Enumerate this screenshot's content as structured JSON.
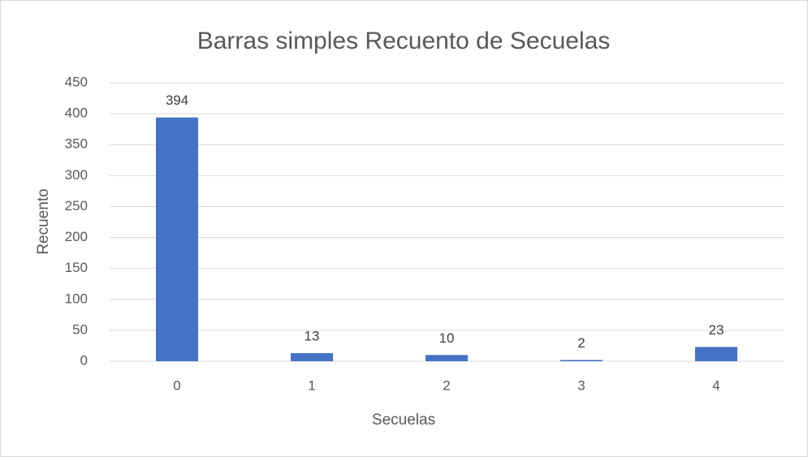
{
  "chart_data": {
    "type": "bar",
    "title": "Barras simples Recuento de Secuelas",
    "x_label": "Secuelas",
    "y_label": "Recuento",
    "categories": [
      "0",
      "1",
      "2",
      "3",
      "4"
    ],
    "values": [
      394,
      13,
      10,
      2,
      23
    ],
    "color": "#4472c4",
    "ylim": [
      0,
      450
    ],
    "yticks": [
      0,
      50,
      100,
      150,
      200,
      250,
      300,
      350,
      400,
      450
    ],
    "grid": true
  }
}
